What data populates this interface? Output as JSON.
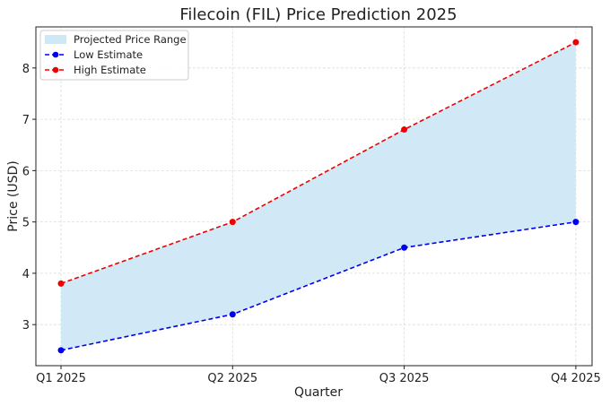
{
  "chart_data": {
    "type": "area",
    "title": "Filecoin (FIL) Price Prediction 2025",
    "xlabel": "Quarter",
    "ylabel": "Price (USD)",
    "categories": [
      "Q1 2025",
      "Q2 2025",
      "Q3 2025",
      "Q4 2025"
    ],
    "ylim": [
      2.2,
      8.8
    ],
    "yticks": [
      3,
      4,
      5,
      6,
      7,
      8
    ],
    "grid": true,
    "legend_position": "top-left",
    "fill": {
      "name": "Projected Price Range",
      "color": "#cfe8f5"
    },
    "series": [
      {
        "name": "Low Estimate",
        "color": "#0000ee",
        "style": "dashed",
        "values": [
          2.5,
          3.2,
          4.5,
          5.0
        ]
      },
      {
        "name": "High Estimate",
        "color": "#ee0000",
        "style": "dashed",
        "values": [
          3.8,
          5.0,
          6.8,
          8.5
        ]
      }
    ]
  }
}
